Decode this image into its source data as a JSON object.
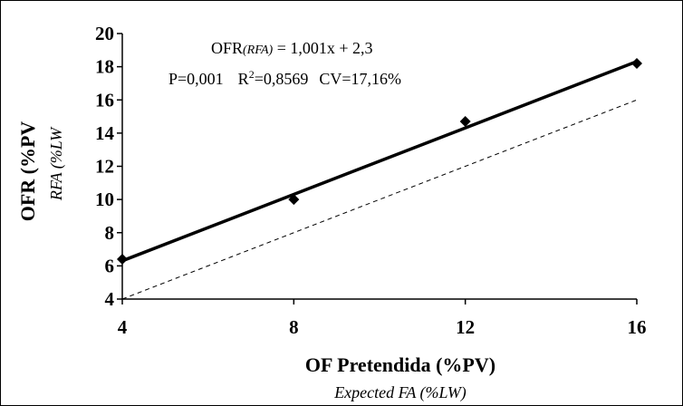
{
  "chart_data": {
    "type": "scatter",
    "x_ticks": [
      "4",
      "8",
      "12",
      "16"
    ],
    "y_ticks": [
      "4",
      "6",
      "8",
      "10",
      "12",
      "14",
      "16",
      "18",
      "20"
    ],
    "xlim": [
      4,
      16
    ],
    "ylim": [
      4,
      20
    ],
    "xlabel": "OF Pretendida (%PV)",
    "xlabel_sub": "Expected FA (%LW)",
    "ylabel": "OFR (%PV",
    "ylabel_sub": "RFA (%LW",
    "points": [
      {
        "x": 4,
        "y": 6.4
      },
      {
        "x": 8,
        "y": 10.0
      },
      {
        "x": 12,
        "y": 14.7
      },
      {
        "x": 16,
        "y": 18.2
      }
    ],
    "regression": {
      "slope": 1.001,
      "intercept": 2.3
    },
    "reference_line": {
      "from": [
        4,
        4
      ],
      "to": [
        16,
        16
      ],
      "style": "dashed"
    },
    "equation": {
      "prefix": "OFR",
      "italic": "(RFA)",
      "rhs": " = 1,001x + 2,3",
      "stats_p": "P=0,001",
      "stats_r_base": "R",
      "stats_r_sup": "2",
      "stats_r_value": "=0,8569",
      "stats_cv": "CV=17,16%"
    },
    "grid": false,
    "legend": "none"
  }
}
